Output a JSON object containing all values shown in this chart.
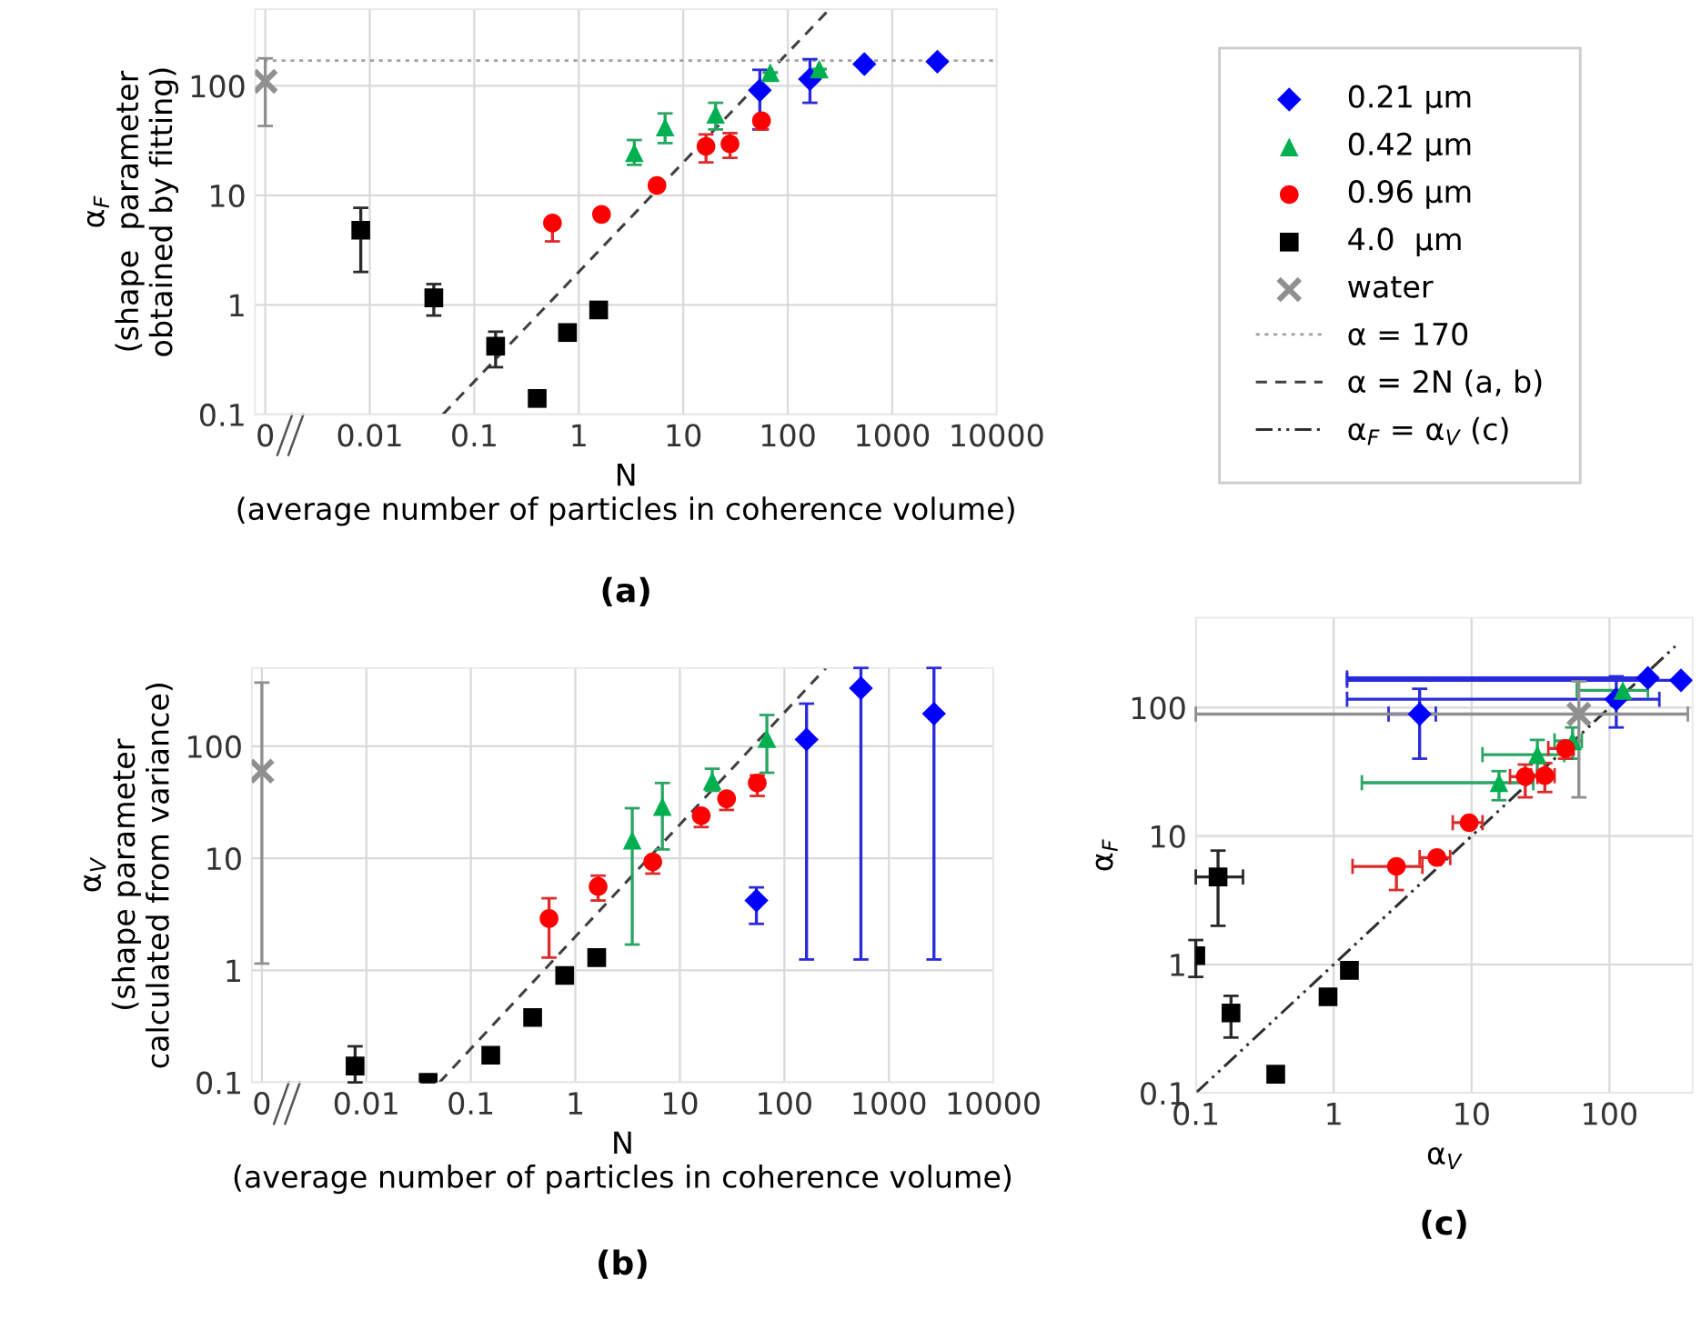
{
  "chart_data": [
    {
      "type": "scatter",
      "title": "(a)",
      "xlabel": "N\n(average number of particles in coherence volume)",
      "ylabel": "α$_{F}$\n(shape  parameter\nobtained by fitting)",
      "log": "xy",
      "xlim": [
        0.0008,
        10000
      ],
      "xticks": [
        {
          "value": 0.001,
          "label": "0"
        },
        0.01,
        0.1,
        1,
        10,
        100,
        1000,
        10000
      ],
      "ylim": [
        0.1,
        500
      ],
      "yticks": [
        0.1,
        1,
        10,
        100
      ],
      "grid": true,
      "legend": "right",
      "ref_lines": [
        {
          "axis": "y",
          "value": 170,
          "label": "α = 170",
          "color": "#a0a0a0",
          "line_style": "dotted"
        }
      ],
      "series": [
        {
          "name": "0.21 µm",
          "color": "#0000ff",
          "marker": "diamond",
          "x": [
            54,
            163,
            540,
            2700
          ],
          "values": [
            91,
            115,
            158,
            166
          ],
          "errors": [
            [
              40,
              140
            ],
            [
              70,
              175
            ],
            null,
            null
          ]
        },
        {
          "name": "0.42 µm",
          "color": "#00b050",
          "marker": "triangle",
          "x": [
            3.4,
            6.7,
            20.4,
            68,
            200
          ],
          "values": [
            24.5,
            42,
            55,
            132,
            142
          ],
          "errors": [
            [
              19,
              32
            ],
            [
              30,
              56
            ],
            [
              40,
              70
            ],
            null,
            null
          ]
        },
        {
          "name": "0.96 µm",
          "color": "#ff0000",
          "marker": "circle",
          "x": [
            0.56,
            1.65,
            5.6,
            16.5,
            28,
            56
          ],
          "values": [
            5.6,
            6.7,
            12.3,
            28,
            29.5,
            48
          ],
          "errors": [
            [
              3.8,
              5.6
            ],
            null,
            null,
            [
              20,
              36
            ],
            [
              22,
              37
            ],
            [
              40,
              48
            ]
          ]
        },
        {
          "name": "4.0  µm",
          "color": "#000000",
          "marker": "square",
          "x": [
            0.0082,
            0.041,
            0.16,
            0.4,
            0.78,
            1.55
          ],
          "values": [
            4.8,
            1.16,
            0.42,
            0.14,
            0.56,
            0.9
          ],
          "errors": [
            [
              2,
              7.7
            ],
            [
              0.8,
              1.55
            ],
            [
              0.27,
              0.57
            ],
            null,
            null,
            null
          ]
        },
        {
          "name": "water",
          "color": "#909090",
          "marker": "cross",
          "x": [
            0.001
          ],
          "values": [
            110
          ],
          "errors": [
            [
              43,
              178
            ]
          ]
        },
        {
          "name": "α = 2N (a, b)",
          "type": "line",
          "color": "#404040",
          "line_style": "dashed",
          "x": [
            0.05,
            250
          ],
          "values": [
            0.1,
            500
          ]
        }
      ]
    },
    {
      "type": "scatter",
      "title": "(b)",
      "xlabel": "N\n(average number of particles in coherence volume)",
      "ylabel": "α$_{V}$\n(shape parameter\ncalculated from variance)",
      "log": "xy",
      "xlim": [
        0.0008,
        10000
      ],
      "xticks": [
        {
          "value": 0.001,
          "label": "0"
        },
        0.01,
        0.1,
        1,
        10,
        100,
        1000,
        10000
      ],
      "ylim": [
        0.1,
        500
      ],
      "yticks": [
        0.1,
        1,
        10,
        100
      ],
      "grid": true,
      "series": [
        {
          "color": "#0000ff",
          "marker": "diamond",
          "x": [
            54,
            163,
            540,
            2700
          ],
          "values": [
            4.2,
            115,
            330,
            195
          ],
          "errors": [
            [
              2.6,
              5.5
            ],
            [
              1.25,
              240
            ],
            [
              1.25,
              500
            ],
            [
              1.25,
              500
            ]
          ]
        },
        {
          "color": "#00b050",
          "marker": "triangle",
          "x": [
            3.5,
            6.8,
            20.4,
            68
          ],
          "values": [
            14.5,
            29,
            49,
            117
          ],
          "errors": [
            [
              1.7,
              28
            ],
            [
              12,
              47
            ],
            [
              40,
              63
            ],
            [
              58,
              190
            ]
          ]
        },
        {
          "color": "#ff0000",
          "marker": "circle",
          "x": [
            0.56,
            1.65,
            5.5,
            16,
            28,
            55
          ],
          "values": [
            2.9,
            5.6,
            9.3,
            24,
            34,
            47
          ],
          "errors": [
            [
              1.3,
              4.4
            ],
            [
              4.2,
              7
            ],
            [
              7.3,
              9.3
            ],
            [
              19,
              24
            ],
            [
              27,
              34
            ],
            [
              36,
              55
            ]
          ]
        },
        {
          "color": "#000000",
          "marker": "square",
          "x": [
            0.0078,
            0.039,
            0.155,
            0.39,
            0.79,
            1.6
          ],
          "values": [
            0.14,
            0.1,
            0.175,
            0.38,
            0.9,
            1.3
          ],
          "errors": [
            [
              0.1,
              0.21
            ],
            null,
            null,
            null,
            null,
            null
          ]
        },
        {
          "color": "#909090",
          "marker": "cross",
          "x": [
            0.001
          ],
          "values": [
            60
          ],
          "errors": [
            [
              1.15,
              370
            ]
          ]
        },
        {
          "type": "line",
          "color": "#404040",
          "line_style": "dashed",
          "x": [
            0.05,
            250
          ],
          "values": [
            0.1,
            500
          ]
        }
      ]
    },
    {
      "type": "scatter",
      "title": "(c)",
      "xlabel": "α$_{V}$",
      "ylabel": "α$_{F}$",
      "log": "xy",
      "xlim": [
        0.1,
        400
      ],
      "xticks": [
        0.1,
        1,
        10,
        100
      ],
      "ylim": [
        0.1,
        500
      ],
      "yticks": [
        0.1,
        1,
        10,
        100
      ],
      "grid": true,
      "series": [
        {
          "color": "#0000ff",
          "marker": "diamond",
          "x": [
            4.2,
            112,
            190,
            330
          ],
          "values": [
            89,
            116,
            170,
            163
          ],
          "errors": [
            [
              40,
              140
            ],
            [
              70,
              175
            ],
            null,
            null
          ],
          "xerrors": [
            [
              2.5,
              5.5
            ],
            [
              1.25,
              230
            ],
            [
              1.25,
              190
            ],
            [
              1.25,
              330
            ]
          ]
        },
        {
          "color": "#00b050",
          "marker": "triangle",
          "x": [
            15.8,
            30,
            54,
            125
          ],
          "values": [
            26,
            43,
            55,
            136
          ],
          "errors": [
            [
              19,
              32
            ],
            [
              30,
              56
            ],
            [
              40,
              70
            ],
            null
          ],
          "xerrors": [
            [
              1.6,
              28
            ],
            [
              12,
              47
            ],
            [
              40,
              63
            ],
            [
              58,
              190
            ]
          ]
        },
        {
          "color": "#ff0000",
          "marker": "circle",
          "x": [
            2.85,
            5.6,
            9.6,
            24.5,
            34,
            48
          ],
          "values": [
            5.8,
            6.8,
            12.7,
            29,
            29.5,
            48
          ],
          "errors": [
            [
              3.8,
              5.8
            ],
            null,
            null,
            [
              20,
              36
            ],
            [
              22,
              37
            ],
            [
              40,
              48
            ]
          ],
          "xerrors": [
            [
              1.37,
              4.4
            ],
            [
              4.2,
              7
            ],
            [
              7.3,
              12
            ],
            [
              19,
              30
            ],
            [
              27,
              40
            ],
            [
              36,
              55
            ]
          ]
        },
        {
          "color": "#000000",
          "marker": "square",
          "x": [
            0.145,
            0.1,
            0.18,
            0.38,
            0.91,
            1.3
          ],
          "values": [
            4.8,
            1.17,
            0.42,
            0.14,
            0.56,
            0.9
          ],
          "errors": [
            [
              2,
              7.7
            ],
            [
              0.8,
              1.55
            ],
            [
              0.27,
              0.57
            ],
            null,
            null,
            null
          ],
          "xerrors": [
            [
              0.1,
              0.22
            ],
            null,
            null,
            null,
            null,
            null
          ]
        },
        {
          "color": "#909090",
          "marker": "cross",
          "x": [
            60
          ],
          "values": [
            89
          ],
          "errors": [
            [
              20,
              160
            ]
          ],
          "xerrors": [
            [
              0.1,
              370
            ]
          ]
        },
        {
          "name": "α$_{F}$ = α$_{V}$ (c)",
          "type": "line",
          "color": "#303030",
          "line_style": "dashdot",
          "x": [
            0.1,
            300
          ],
          "values": [
            0.1,
            300
          ]
        }
      ]
    }
  ]
}
